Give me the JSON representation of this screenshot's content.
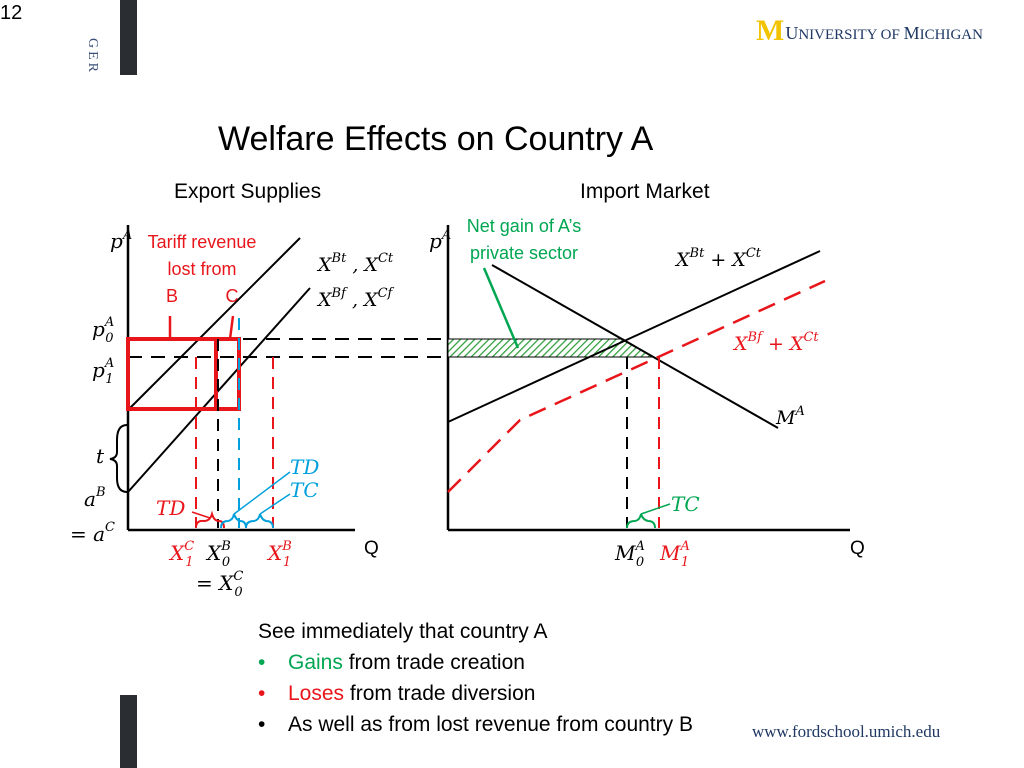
{
  "slide_number": "12",
  "sidebar_text": "GER",
  "logo": {
    "m": "M",
    "text_prefix": "U",
    "text_1": "NIVERSITY OF ",
    "text_2": "M",
    "text_3": "ICHIGAN",
    "color_m": "#f2c300",
    "color_text": "#1f3864"
  },
  "title": "Welfare Effects on Country A",
  "panels": {
    "left": "Export Supplies",
    "right": "Import Market"
  },
  "left_diagram": {
    "y_axis_label": "p^A",
    "tariff_note": {
      "line1": "Tariff revenue",
      "line2": "lost from",
      "b": "B",
      "c": "C"
    },
    "price_labels": {
      "p0": "p_0^A",
      "p1": "p_1^A",
      "t": "t",
      "aB": "a^B",
      "eq_aC": "= a^C"
    },
    "curve_labels": {
      "upper": "X^Bt , X^Ct",
      "lower": "X^Bf , X^Cf"
    },
    "effect_labels": {
      "td_red": "TD",
      "td_blue": "TD",
      "tc_blue": "TC"
    },
    "x_labels": {
      "x1c": "X_1^C",
      "x0b": "X_0^B",
      "eq_x0c": "= X_0^C",
      "x1b": "X_1^B",
      "q": "Q"
    }
  },
  "right_diagram": {
    "y_axis_label": "p^A",
    "net_gain_note": {
      "line1": "Net gain of A’s",
      "line2": "private sector"
    },
    "curve_labels": {
      "supply_tariff": "X^Bt + X^Ct",
      "supply_free": "X^Bf + X^Ct",
      "demand": "M^A"
    },
    "effect_labels": {
      "tc": "TC"
    },
    "x_labels": {
      "m0": "M_0^A",
      "m1": "M_1^A",
      "q": "Q"
    }
  },
  "bullets": {
    "intro": "See immediately that country A",
    "b1_colored": "Gains",
    "b1_rest": " from trade creation",
    "b2_colored": "Loses",
    "b2_rest": " from trade diversion",
    "b3": "As well as from lost revenue from country B"
  },
  "colors": {
    "red": "#e8161b",
    "green": "#00a651",
    "blue": "#00a0dc",
    "hatch": "#2e9e3a"
  },
  "footer_url": "www.fordschool.umich.edu"
}
